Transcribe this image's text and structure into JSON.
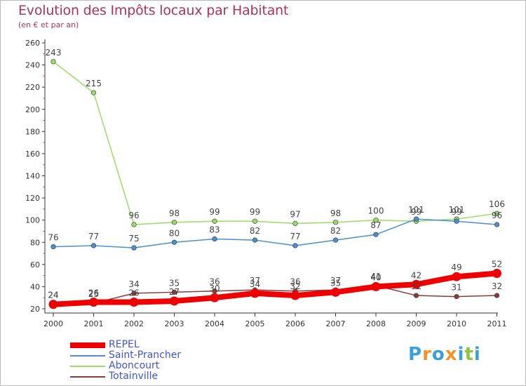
{
  "chart_data": {
    "type": "line",
    "title": "Evolution des Impôts locaux par Habitant",
    "subtitle": "(en € et par an)",
    "xlabel": "",
    "ylabel": "",
    "ylim": [
      20,
      260
    ],
    "yticks": [
      20,
      40,
      60,
      80,
      100,
      120,
      140,
      160,
      180,
      200,
      220,
      240,
      260
    ],
    "categories": [
      "2000",
      "2001",
      "2002",
      "2003",
      "2004",
      "2005",
      "2006",
      "2007",
      "2008",
      "2009",
      "2010",
      "2011"
    ],
    "series": [
      {
        "name": "REPEL",
        "color": "#ee0000",
        "values": [
          24,
          26,
          26,
          27,
          30,
          34,
          32,
          35,
          40,
          42,
          49,
          52
        ]
      },
      {
        "name": "Saint-Prancher",
        "color": "#4a8fd0",
        "values": [
          76,
          77,
          75,
          80,
          83,
          82,
          77,
          82,
          87,
          101,
          99,
          96
        ]
      },
      {
        "name": "Aboncourt",
        "color": "#99dd66",
        "values": [
          243,
          215,
          96,
          98,
          99,
          99,
          97,
          98,
          100,
          99,
          101,
          106
        ]
      },
      {
        "name": "Totainville",
        "color": "#8a3b3b",
        "values": [
          24,
          25,
          34,
          35,
          36,
          37,
          36,
          37,
          41,
          32,
          31,
          32
        ]
      }
    ],
    "legend_position": "bottom-left",
    "grid": false
  },
  "logo": {
    "text": "Proxiti",
    "colors": [
      "#3aa0dc",
      "#f29423",
      "#3aa0dc",
      "#f29423",
      "#3aa0dc",
      "#8cc63e",
      "#3aa0dc"
    ]
  }
}
